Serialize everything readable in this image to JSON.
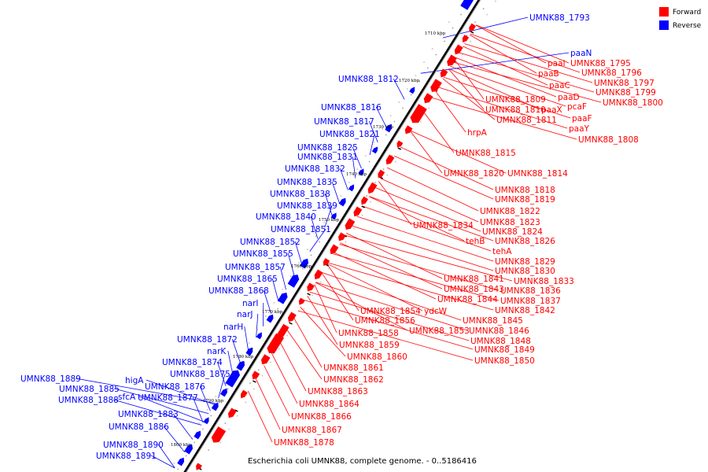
{
  "legend": [
    {
      "label": "Forward",
      "color": "#ff0000"
    },
    {
      "label": "Reverse",
      "color": "#0000ff"
    }
  ],
  "caption": "Escherichia coli UMNK88, complete genome. - 0..5186416",
  "ticks": [
    "1710 kbp",
    "1720 kbp",
    "1730 kbp",
    "1740 kbp",
    "1750 kbp",
    "1760 kbp",
    "1770 kbp",
    "1780 kbp",
    "1790 kbp",
    "1800 kbp"
  ],
  "forward_labels": [
    "paaI",
    "UMNK88_1795",
    "paaB",
    "UMNK88_1796",
    "paaC",
    "UMNK88_1797",
    "paaD",
    "UMNK88_1799",
    "UMNK88_1809",
    "pcaF",
    "UMNK88_1800",
    "UMNK88_1810",
    "paaX",
    "paaF",
    "UMNK88_1811",
    "paaY",
    "hrpA",
    "UMNK88_1808",
    "UMNK88_1815",
    "UMNK88_1820",
    "UMNK88_1814",
    "UMNK88_1818",
    "UMNK88_1819",
    "UMNK88_1822",
    "UMNK88_1823",
    "UMNK88_1834",
    "UMNK88_1824",
    "tehB",
    "UMNK88_1826",
    "tehA",
    "UMNK88_1829",
    "UMNK88_1830",
    "UMNK88_1841",
    "UMNK88_1833",
    "UMNK88_1843",
    "UMNK88_1836",
    "UMNK88_1844",
    "UMNK88_1837",
    "UMNK88_1854",
    "ydcW",
    "UMNK88_1842",
    "UMNK88_1856",
    "UMNK88_1845",
    "UMNK88_1853",
    "UMNK88_1846",
    "UMNK88_1858",
    "UMNK88_1848",
    "UMNK88_1859",
    "UMNK88_1849",
    "UMNK88_1860",
    "UMNK88_1850",
    "UMNK88_1861",
    "UMNK88_1862",
    "UMNK88_1863",
    "UMNK88_1864",
    "UMNK88_1866",
    "UMNK88_1867",
    "UMNK88_1878"
  ],
  "reverse_labels": [
    "UMNK88_1793",
    "paaN",
    "UMNK88_1812",
    "UMNK88_1816",
    "UMNK88_1817",
    "UMNK88_1821",
    "UMNK88_1825",
    "UMNK88_1831",
    "UMNK88_1832",
    "UMNK88_1835",
    "UMNK88_1838",
    "UMNK88_1839",
    "UMNK88_1840",
    "UMNK88_1851",
    "UMNK88_1852",
    "UMNK88_1855",
    "UMNK88_1857",
    "UMNK88_1865",
    "UMNK88_1868",
    "narI",
    "narJ",
    "narH",
    "UMNK88_1872",
    "narK",
    "UMNK88_1874",
    "UMNK88_1875",
    "higA",
    "UMNK88_1876",
    "UMNK88_1889",
    "UMNK88_1885",
    "sfcA",
    "UMNK88_1877",
    "UMNK88_1888",
    "UMNK88_1883",
    "UMNK88_1886",
    "UMNK88_1890",
    "UMNK88_1891"
  ]
}
